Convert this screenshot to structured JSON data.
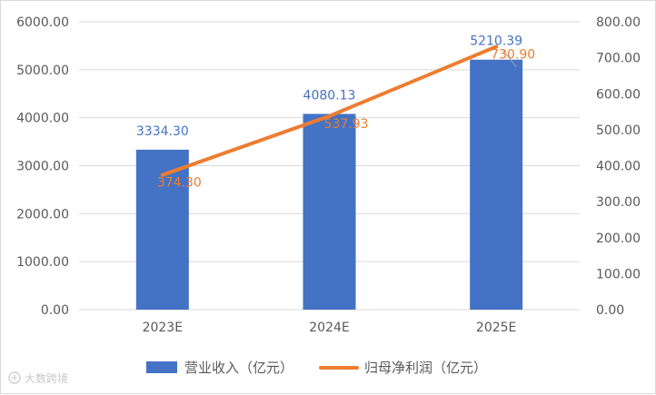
{
  "chart_data": {
    "type": "bar",
    "categories": [
      "2023E",
      "2024E",
      "2025E"
    ],
    "series": [
      {
        "name": "营业收入（亿元）",
        "type": "bar",
        "axis": "left",
        "color": "#4472c4",
        "values": [
          3334.3,
          4080.13,
          5210.39
        ],
        "labels": [
          "3334.30",
          "4080.13",
          "5210.39"
        ]
      },
      {
        "name": "归母净利润（亿元）",
        "type": "line",
        "axis": "right",
        "color": "#ed7d31",
        "values": [
          374.3,
          537.93,
          730.9
        ],
        "labels": [
          "374.30",
          "537.93",
          "730.90"
        ]
      }
    ],
    "y_left": {
      "lim": [
        0,
        6000
      ],
      "ticks": [
        "0.00",
        "1000.00",
        "2000.00",
        "3000.00",
        "4000.00",
        "5000.00",
        "6000.00"
      ]
    },
    "y_right": {
      "lim": [
        0,
        800
      ],
      "ticks": [
        "0.00",
        "100.00",
        "200.00",
        "300.00",
        "400.00",
        "500.00",
        "600.00",
        "700.00",
        "800.00"
      ]
    },
    "grid": true,
    "legend_position": "bottom"
  },
  "watermark": "大数跨境"
}
